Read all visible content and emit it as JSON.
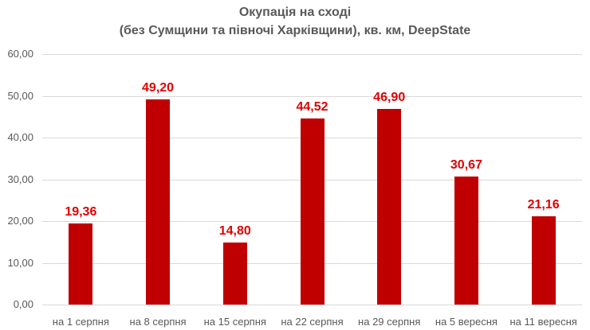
{
  "chart_data": {
    "type": "bar",
    "title": "Окупація на сході",
    "subtitle": "(без Сумщини та півночі Харківщини), кв. км, DeepState",
    "categories": [
      "на 1 серпня",
      "на 8 серпня",
      "на 15 серпня",
      "на 22 серпня",
      "на 29 серпня",
      "на 5 вересня",
      "на 11 вересня"
    ],
    "values": [
      19.36,
      49.2,
      14.8,
      44.52,
      46.9,
      30.67,
      21.16
    ],
    "value_labels": [
      "19,36",
      "49,20",
      "14,80",
      "44,52",
      "46,90",
      "30,67",
      "21,16"
    ],
    "xlabel": "",
    "ylabel": "",
    "ylim": [
      0,
      60
    ],
    "yticks": [
      "0,00",
      "10,00",
      "20,00",
      "30,00",
      "40,00",
      "50,00",
      "60,00"
    ],
    "grid": true,
    "legend": "none",
    "bar_color": "#c00000",
    "label_color": "#e00000"
  }
}
